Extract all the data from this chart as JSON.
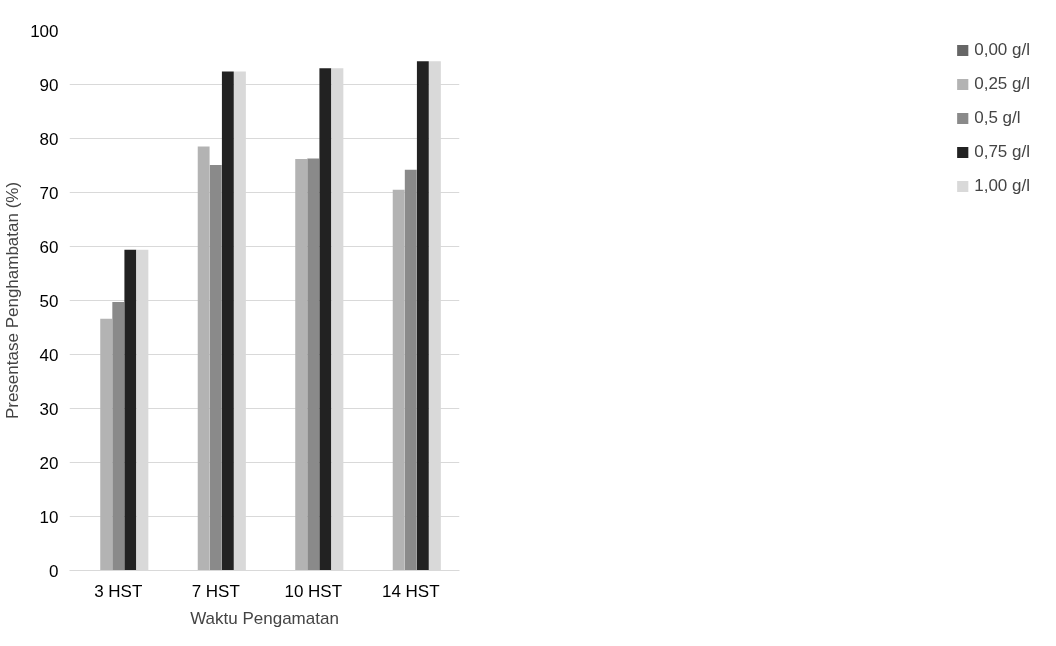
{
  "chart_data": {
    "type": "bar",
    "xlabel": "Waktu Pengamatan",
    "ylabel": "Presentase Penghambatan (%)",
    "categories": [
      "3 HST",
      "7 HST",
      "10 HST",
      "14 HST"
    ],
    "series": [
      {
        "name": "0,00 g/l",
        "color": "#666666",
        "values": [
          0,
          0,
          0,
          0
        ]
      },
      {
        "name": "0,25 g/l",
        "color": "#b3b3b3",
        "values": [
          46.6,
          78.5,
          76.2,
          70.5
        ]
      },
      {
        "name": "0,5 g/l",
        "color": "#8a8a8a",
        "values": [
          49.7,
          75.1,
          76.3,
          74.2
        ]
      },
      {
        "name": "0,75 g/l",
        "color": "#222222",
        "values": [
          59.4,
          92.4,
          93.0,
          94.3
        ]
      },
      {
        "name": "1,00 g/l",
        "color": "#d9d9d9",
        "values": [
          59.4,
          92.4,
          93.0,
          94.3
        ]
      }
    ],
    "ylim": [
      0,
      100
    ],
    "yticks": [
      0,
      10,
      20,
      30,
      40,
      50,
      60,
      70,
      80,
      90,
      100
    ],
    "grid": "y",
    "legend": "right"
  }
}
